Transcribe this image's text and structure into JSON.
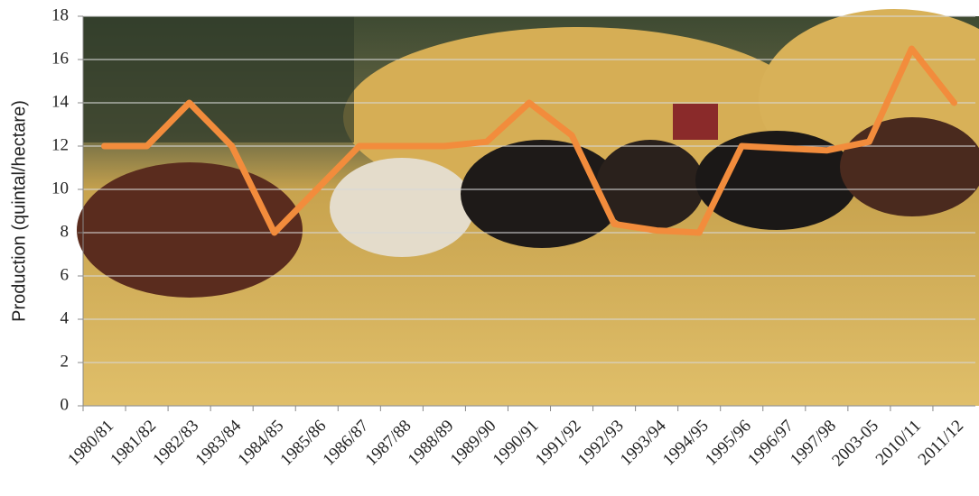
{
  "chart_data": {
    "type": "line",
    "y_label": "Production (quintal/hectare)",
    "categories": [
      "1980/81",
      "1981/82",
      "1982/83",
      "1983/84",
      "1984/85",
      "1985/86",
      "1986/87",
      "1987/88",
      "1988/89",
      "1989/90",
      "1990/91",
      "1991/92",
      "1992/93",
      "1993/94",
      "1994/95",
      "1995/96",
      "1996/97",
      "1997/98",
      "2003-05",
      "2010/11",
      "2011/12"
    ],
    "series": [
      {
        "color": "#f28c3c",
        "values": [
          12,
          12,
          14,
          12,
          8,
          10,
          12,
          12,
          12,
          12.2,
          14,
          12.5,
          8.4,
          8.1,
          8,
          12,
          11.9,
          11.8,
          12.2,
          16.5,
          14
        ]
      }
    ],
    "ylim": [
      0,
      18
    ],
    "yticks": [
      0,
      2,
      4,
      6,
      8,
      10,
      12,
      14,
      16,
      18
    ],
    "grid": true
  }
}
